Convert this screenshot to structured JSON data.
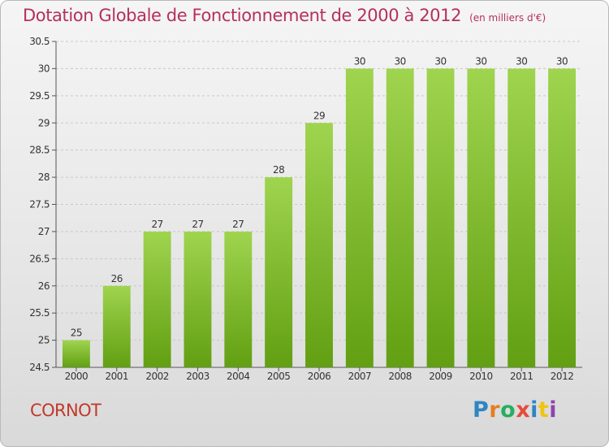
{
  "header": {
    "title": "Dotation Globale de Fonctionnement de 2000 à 2012",
    "subtitle": "(en milliers d'€)"
  },
  "commune": "CORNOT",
  "logo": {
    "text": "Proxiti",
    "letters": [
      {
        "ch": "P",
        "color": "#2e86c1"
      },
      {
        "ch": "r",
        "color": "#e67e22"
      },
      {
        "ch": "o",
        "color": "#27ae60"
      },
      {
        "ch": "x",
        "color": "#e74c3c"
      },
      {
        "ch": "i",
        "color": "#2e86c1"
      },
      {
        "ch": "t",
        "color": "#f1c40f"
      },
      {
        "ch": "i",
        "color": "#8e44ad"
      }
    ]
  },
  "chart_data": {
    "type": "bar",
    "title": "Dotation Globale de Fonctionnement de 2000 à 2012",
    "subtitle": "(en milliers d'€)",
    "xlabel": "",
    "ylabel": "",
    "categories": [
      "2000",
      "2001",
      "2002",
      "2003",
      "2004",
      "2005",
      "2006",
      "2007",
      "2008",
      "2009",
      "2010",
      "2011",
      "2012"
    ],
    "values": [
      25,
      26,
      27,
      27,
      27,
      28,
      29,
      30,
      30,
      30,
      30,
      30,
      30
    ],
    "data_labels": [
      "25",
      "26",
      "27",
      "27",
      "27",
      "28",
      "29",
      "30",
      "30",
      "30",
      "30",
      "30",
      "30"
    ],
    "ylim": [
      24.5,
      30.5
    ],
    "yticks": [
      "24.5",
      "25",
      "25.5",
      "26",
      "26.5",
      "27",
      "27.5",
      "28",
      "28.5",
      "29",
      "29.5",
      "30",
      "30.5"
    ],
    "grid": true,
    "colors": {
      "bar_top": "#9fd44f",
      "bar_bottom": "#629f12",
      "grid": "#c8c8c8",
      "axis": "#555555"
    }
  }
}
